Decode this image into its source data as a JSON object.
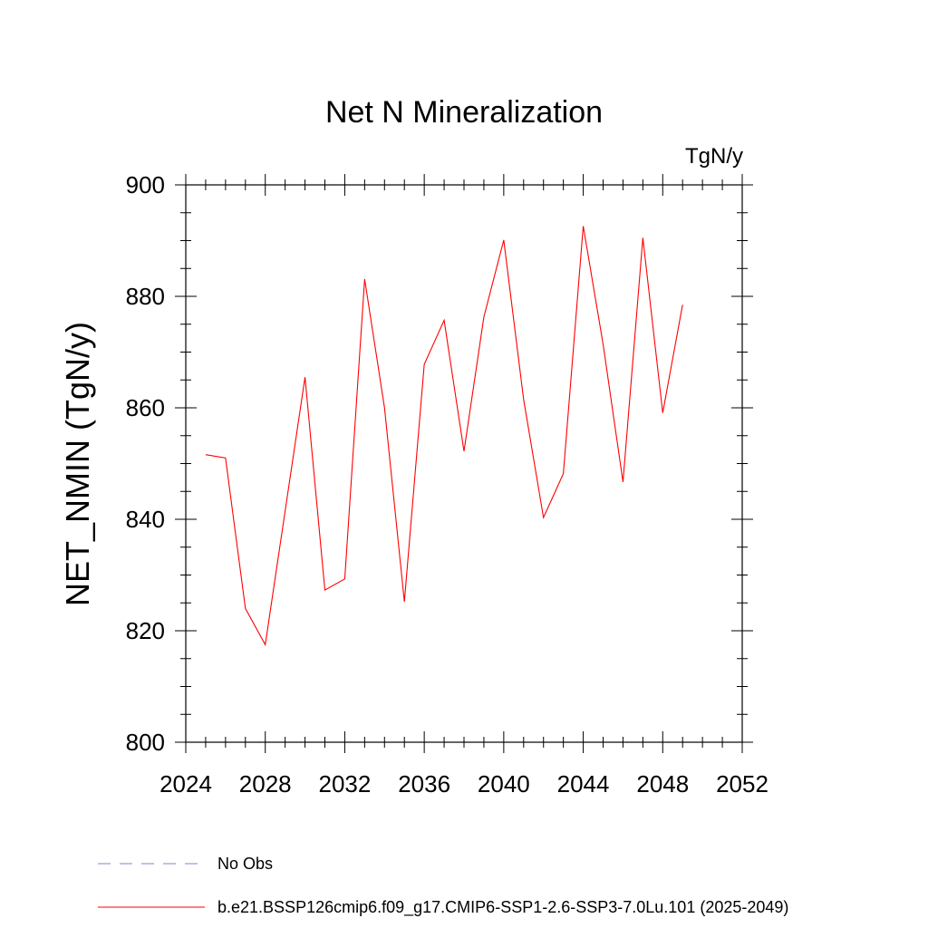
{
  "chart_data": {
    "type": "line",
    "title": "Net N Mineralization",
    "units": "TgN/y",
    "xlabel": "",
    "ylabel": "NET_NMIN  (TgN/y)",
    "xlim": [
      2024,
      2052
    ],
    "ylim": [
      800,
      900
    ],
    "x_ticks": [
      "2024",
      "2028",
      "2032",
      "2036",
      "2040",
      "2044",
      "2048",
      "2052"
    ],
    "y_ticks": [
      "800",
      "820",
      "840",
      "860",
      "880",
      "900"
    ],
    "x_minor_step": 1,
    "y_minor_step": 5,
    "grid": false,
    "legend_placement": "bottom-left, below plot",
    "series": [
      {
        "name": "b.e21.BSSP126cmip6.f09_g17.CMIP6-SSP1-2.6-SSP3-7.0Lu.101 (2025-2049)",
        "color": "#ff0000",
        "dashed": false,
        "x": [
          2025,
          2026,
          2027,
          2028,
          2029,
          2030,
          2031,
          2032,
          2033,
          2034,
          2035,
          2036,
          2037,
          2038,
          2039,
          2040,
          2041,
          2042,
          2043,
          2044,
          2045,
          2046,
          2047,
          2048,
          2049
        ],
        "values": [
          851.6,
          851.0,
          824.0,
          817.5,
          841.5,
          865.5,
          827.3,
          829.3,
          883.1,
          860.0,
          825.2,
          867.8,
          875.7,
          852.2,
          876.3,
          890.1,
          861.5,
          840.3,
          848.2,
          892.6,
          871.4,
          846.7,
          890.5,
          859.1,
          878.5
        ]
      }
    ],
    "legend": [
      {
        "label": "No Obs",
        "color": "#8a7fd0",
        "dashed": true
      },
      {
        "label": "b.e21.BSSP126cmip6.f09_g17.CMIP6-SSP1-2.6-SSP3-7.0Lu.101 (2025-2049)",
        "color": "#ff0000",
        "dashed": false
      }
    ]
  }
}
